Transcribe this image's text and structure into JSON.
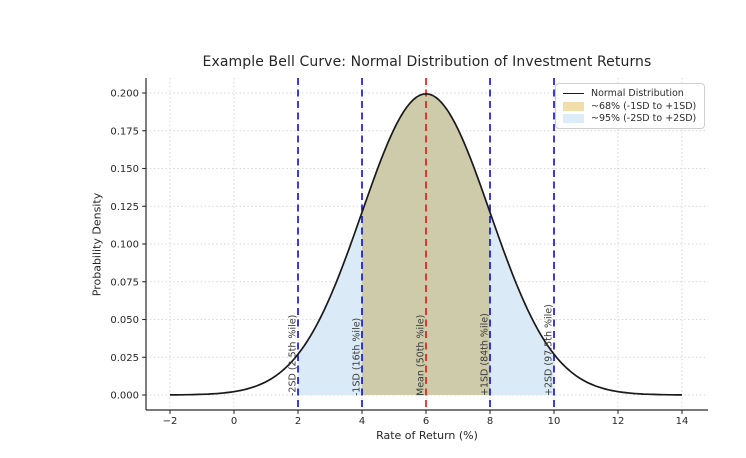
{
  "chart_data": {
    "type": "area",
    "title": "Example Bell Curve: Normal Distribution of Investment Returns",
    "xlabel": "Rate of Return (%)",
    "ylabel": "Probability Density",
    "xlim": [
      -2.8,
      14.8
    ],
    "ylim": [
      -0.01,
      0.21
    ],
    "grid": "dotted",
    "legend_position": "upper right",
    "distribution": {
      "name": "normal",
      "mean": 6,
      "sd": 2,
      "peak_density": 0.1995
    },
    "x_ticks": [
      {
        "v": -2,
        "label": "−2"
      },
      {
        "v": 0,
        "label": "0"
      },
      {
        "v": 2,
        "label": "2"
      },
      {
        "v": 4,
        "label": "4"
      },
      {
        "v": 6,
        "label": "6"
      },
      {
        "v": 8,
        "label": "8"
      },
      {
        "v": 10,
        "label": "10"
      },
      {
        "v": 12,
        "label": "12"
      },
      {
        "v": 14,
        "label": "14"
      }
    ],
    "y_ticks": [
      {
        "v": 0.0,
        "label": "0.000"
      },
      {
        "v": 0.025,
        "label": "0.025"
      },
      {
        "v": 0.05,
        "label": "0.050"
      },
      {
        "v": 0.075,
        "label": "0.075"
      },
      {
        "v": 0.1,
        "label": "0.100"
      },
      {
        "v": 0.125,
        "label": "0.125"
      },
      {
        "v": 0.15,
        "label": "0.150"
      },
      {
        "v": 0.175,
        "label": "0.175"
      },
      {
        "v": 0.2,
        "label": "0.200"
      }
    ],
    "curve": {
      "label": "Normal Distribution",
      "color": "#1a1a1a",
      "x_range": [
        -2,
        14
      ],
      "points": [
        [
          -2,
          7e-05
        ],
        [
          -1.5,
          0.00018
        ],
        [
          -1,
          0.00044
        ],
        [
          -0.5,
          0.00101
        ],
        [
          0,
          0.00221
        ],
        [
          0.5,
          0.00456
        ],
        [
          1,
          0.00876
        ],
        [
          1.5,
          0.01586
        ],
        [
          2,
          0.027
        ],
        [
          2.5,
          0.04313
        ],
        [
          3,
          0.06476
        ],
        [
          3.5,
          0.09132
        ],
        [
          4,
          0.12099
        ],
        [
          4.5,
          0.15057
        ],
        [
          5,
          0.17603
        ],
        [
          5.5,
          0.19333
        ],
        [
          6,
          0.19947
        ],
        [
          6.5,
          0.19333
        ],
        [
          7,
          0.17603
        ],
        [
          7.5,
          0.15057
        ],
        [
          8,
          0.12099
        ],
        [
          8.5,
          0.09132
        ],
        [
          9,
          0.06476
        ],
        [
          9.5,
          0.04313
        ],
        [
          10,
          0.027
        ],
        [
          10.5,
          0.01586
        ],
        [
          11,
          0.00876
        ],
        [
          11.5,
          0.00456
        ],
        [
          12,
          0.00221
        ],
        [
          12.5,
          0.00101
        ],
        [
          13,
          0.00044
        ],
        [
          13.5,
          0.00018
        ],
        [
          14,
          7e-05
        ]
      ]
    },
    "bands": [
      {
        "label": "~68% (-1SD to +1SD)",
        "from": 4,
        "to": 8,
        "fill": "#cdcba9",
        "legend_color": "#f2deab"
      },
      {
        "label": "~95% (-2SD to +2SD)",
        "from": 2,
        "to": 10,
        "fill": "#daeaf6",
        "legend_color": "#dcecf8"
      }
    ],
    "vlines": [
      {
        "x": 2,
        "color": "#0909e8",
        "label": "-2SD (2.5th %ile)"
      },
      {
        "x": 4,
        "color": "#0909e8",
        "label": "-1SD (16th %ile)"
      },
      {
        "x": 6,
        "color": "#e81111",
        "label": "Mean (50th %ile)"
      },
      {
        "x": 8,
        "color": "#0909e8",
        "label": "+1SD (84th %ile)"
      },
      {
        "x": 10,
        "color": "#0909e8",
        "label": "+2SD (97.5th %ile)"
      }
    ],
    "colors": {
      "grid": "#d6d6d6",
      "spine": "#2a2a2a",
      "tick_label": "#262626",
      "vline_label": "#3a3a3a"
    }
  }
}
